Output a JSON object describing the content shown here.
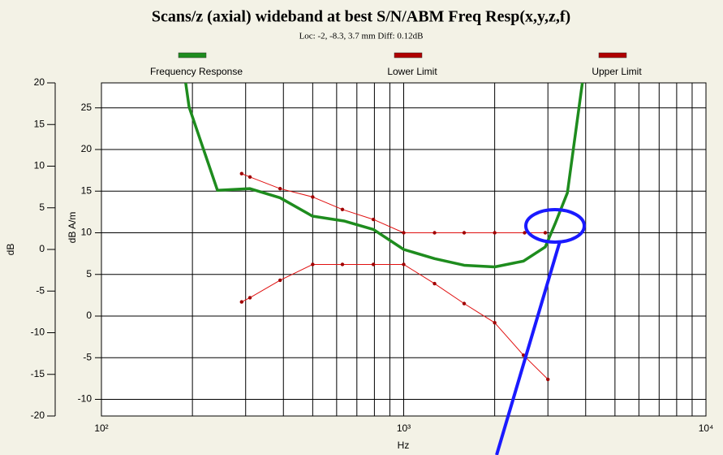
{
  "chart_data": {
    "type": "line",
    "title": "Scans/z (axial) wideband at best S/N/ABM Freq Resp(x,y,z,f)",
    "subtitle": "Loc: -2, -8.3, 3.7 mm Diff: 0.12dB",
    "xlabel": "Hz",
    "ylabel": "dB",
    "y2label": "dB A/m",
    "xscale": "log",
    "xlim": [
      100,
      10000
    ],
    "xticks": [
      {
        "value": 100,
        "label": "10²"
      },
      {
        "value": 1000,
        "label": "10³"
      },
      {
        "value": 10000,
        "label": "10⁴"
      }
    ],
    "ylim": [
      -20,
      20
    ],
    "yticks": [
      -20,
      -15,
      -10,
      -5,
      0,
      5,
      10,
      15,
      20
    ],
    "y2lim": [
      -12,
      28
    ],
    "y2ticks": [
      -10,
      -5,
      0,
      5,
      10,
      15,
      20,
      25
    ],
    "grid": true,
    "legend": "top",
    "series": [
      {
        "name": "Frequency Response",
        "color": "#1e8c1e",
        "axis": "y2",
        "markers": false,
        "x": [
          190,
          195,
          242,
          310,
          390,
          499,
          638,
          794,
          1000,
          1265,
          1585,
          2000,
          2490,
          2940,
          3170,
          3480,
          3900
        ],
        "values": [
          28,
          25.1,
          15.1,
          15.3,
          14.2,
          12.0,
          11.4,
          10.4,
          8.0,
          6.9,
          6.1,
          5.9,
          6.6,
          8.3,
          11.1,
          14.8,
          28
        ]
      },
      {
        "name": "Lower Limit",
        "color": "#e01010",
        "axis": "y2",
        "markers": true,
        "x": [
          291,
          310,
          390,
          500,
          627,
          794,
          1000,
          1265,
          1585,
          2000,
          2490,
          3000
        ],
        "values": [
          1.7,
          2.2,
          4.3,
          6.2,
          6.2,
          6.2,
          6.2,
          3.9,
          1.5,
          -0.8,
          -4.7,
          -7.6
        ]
      },
      {
        "name": "Upper Limit",
        "color": "#e01010",
        "axis": "y2",
        "markers": true,
        "x": [
          291,
          310,
          390,
          500,
          627,
          794,
          1000,
          1265,
          1585,
          2000,
          2512,
          2940
        ],
        "values": [
          17.1,
          16.7,
          15.3,
          14.3,
          12.8,
          11.6,
          10.0,
          10.0,
          10.0,
          10.0,
          10.0,
          10.0
        ]
      }
    ]
  }
}
